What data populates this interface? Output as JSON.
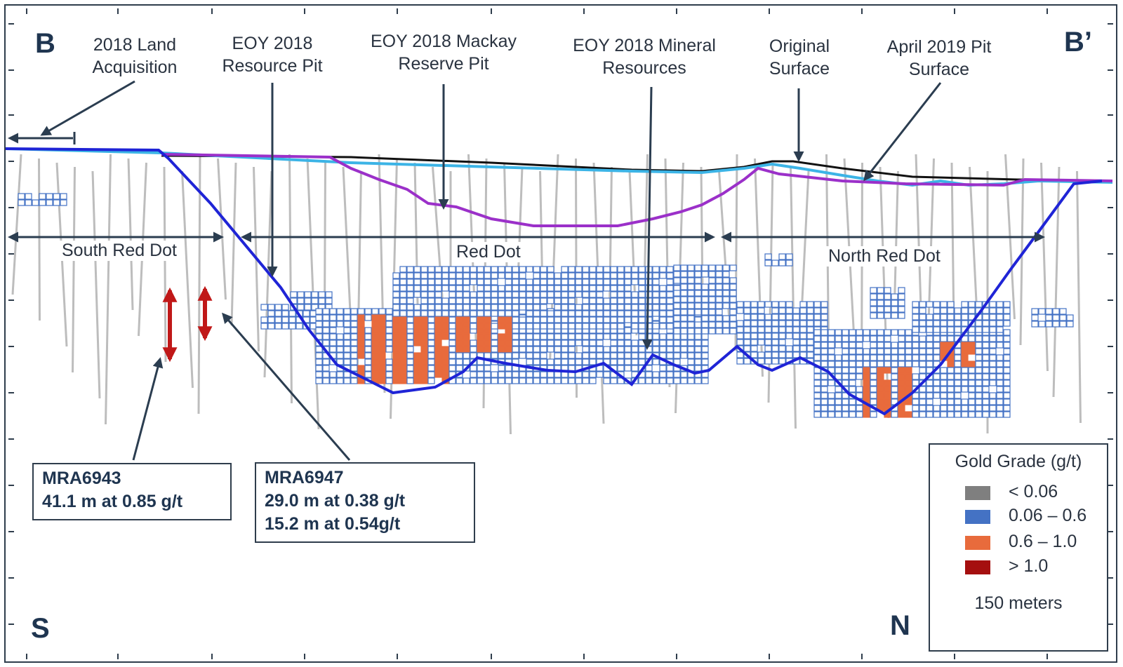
{
  "corners": {
    "top_left": "B",
    "top_right": "B’",
    "bottom_left": "S",
    "bottom_right": "N"
  },
  "callouts": {
    "land": [
      "2018 Land",
      "Acquisition"
    ],
    "resource_pit": [
      "EOY 2018",
      "Resource Pit"
    ],
    "reserve_pit": [
      "EOY 2018 Mackay",
      "Reserve Pit"
    ],
    "mineral_resources": [
      "EOY 2018 Mineral",
      "Resources"
    ],
    "original_surface": [
      "Original",
      "Surface"
    ],
    "april_pit": [
      "April 2019 Pit",
      "Surface"
    ]
  },
  "zones": {
    "south": "South Red Dot",
    "red_dot": "Red Dot",
    "north": "North Red Dot"
  },
  "drill_holes": [
    {
      "name": "MRA6943",
      "intervals": [
        "41.1 m at 0.85 g/t"
      ]
    },
    {
      "name": "MRA6947",
      "intervals": [
        "29.0 m at 0.38 g/t",
        "15.2 m at 0.54g/t"
      ]
    }
  ],
  "legend": {
    "title": "Gold Grade (g/t)",
    "items": [
      {
        "label": "< 0.06",
        "color": "#7f7f7f"
      },
      {
        "label": "0.06 – 0.6",
        "color": "#4472c4"
      },
      {
        "label": "0.6 – 1.0",
        "color": "#e86b3c"
      },
      {
        "label": "> 1.0",
        "color": "#a50f0f"
      }
    ],
    "scale_label": "150 meters"
  },
  "colors": {
    "original_surface": "#111111",
    "april_2019_pit": "#3cb4e6",
    "reserve_pit": "#9b30c9",
    "resource_pit": "#1f24d6",
    "arrow": "#2b3d50",
    "intercept_arrow": "#c01818",
    "block_fill": "#ffffff",
    "block_stroke": "#4472c4",
    "block_high": "#e86b3c"
  }
}
